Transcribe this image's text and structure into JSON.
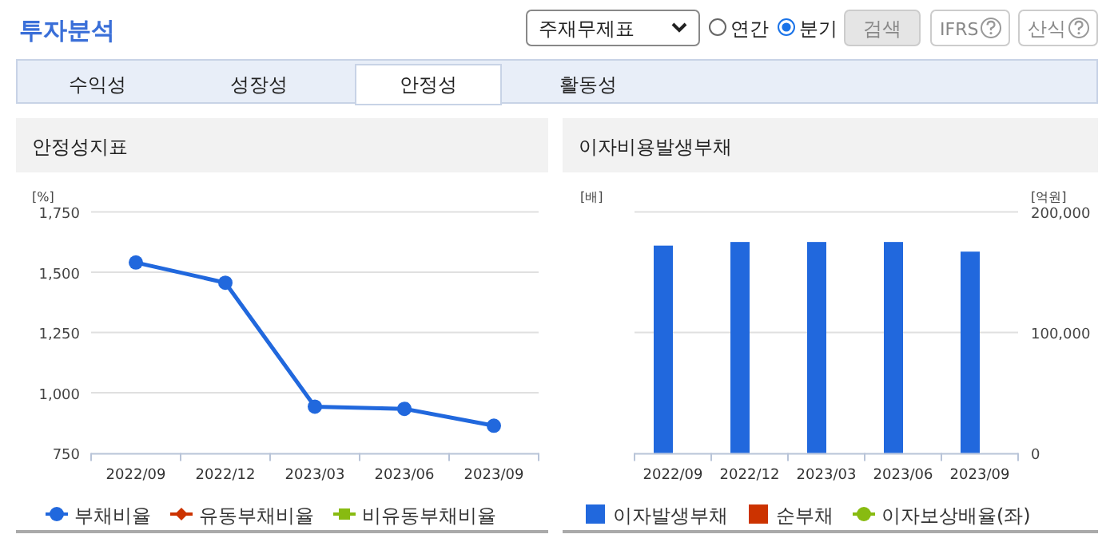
{
  "chart_data": [
    {
      "type": "other",
      "title": "투자분석",
      "annotations": [
        "주재무제표",
        "연간",
        "분기",
        "검색",
        "IFRS",
        "산식",
        "수익성",
        "성장성",
        "안정성",
        "활동성"
      ]
    },
    {
      "type": "line",
      "title": "안정성지표",
      "ylabel": "[%]",
      "categories": [
        "2022/09",
        "2022/12",
        "2023/03",
        "2023/06",
        "2023/09"
      ],
      "ylim": [
        750,
        1750
      ],
      "yticks": [
        {
          "value": 750,
          "label": "750"
        },
        {
          "value": 1000,
          "label": "1,000"
        },
        {
          "value": 1250,
          "label": "1,250"
        },
        {
          "value": 1500,
          "label": "1,500"
        },
        {
          "value": 1750,
          "label": "1,750"
        }
      ],
      "grid": "y",
      "legend": "bottom",
      "series": [
        {
          "name": "부채비율",
          "color": "#2168dd",
          "marker": "circle",
          "values": [
            1540,
            1456,
            942,
            933,
            863
          ]
        },
        {
          "name": "유동부채비율",
          "color": "#cc3300",
          "marker": "diamond",
          "values": [
            null,
            null,
            null,
            null,
            null
          ]
        },
        {
          "name": "비유동부채비율",
          "color": "#88bb11",
          "marker": "square",
          "values": [
            null,
            null,
            null,
            null,
            null
          ]
        }
      ]
    },
    {
      "type": "bar",
      "title": "이자비용발생부채",
      "ylabel": "[배]",
      "y2label": "[억원]",
      "categories": [
        "2022/09",
        "2022/12",
        "2023/03",
        "2023/06",
        "2023/09"
      ],
      "y2lim": [
        0,
        200000
      ],
      "y2ticks": [
        0,
        {
          "value": 100000,
          "label": "100,000"
        },
        {
          "value": 200000,
          "label": "200,000"
        }
      ],
      "grid": "y",
      "legend": "bottom",
      "series": [
        {
          "name": "이자발생부채",
          "color": "#2168dd",
          "axis": "y2",
          "values": [
            172000,
            175000,
            175000,
            175000,
            167000
          ]
        },
        {
          "name": "순부채",
          "color": "#cc3300",
          "axis": "y2",
          "values": [
            null,
            null,
            null,
            null,
            null
          ]
        },
        {
          "name": "이자보상배율(좌)",
          "type": "line",
          "marker": "circle",
          "color": "#88bb11",
          "values": [
            null,
            null,
            null,
            null,
            null
          ]
        }
      ]
    }
  ]
}
